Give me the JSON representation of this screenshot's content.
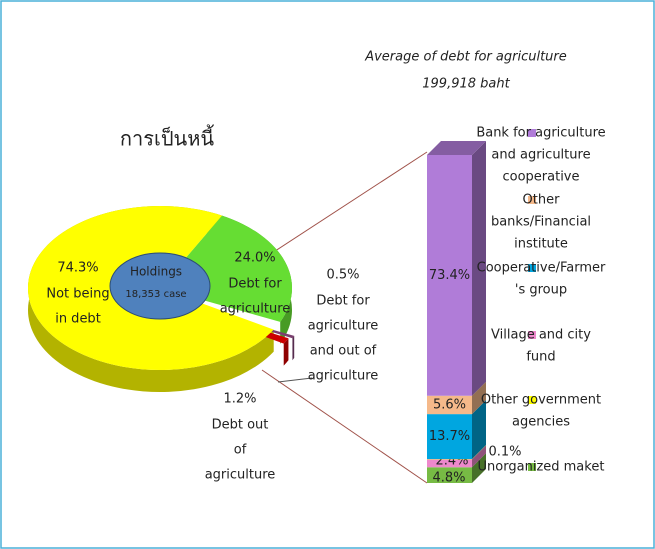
{
  "chart_data": [
    {
      "type": "pie",
      "title": "การเป็นหนี้",
      "center_label": [
        "Holdings",
        "18,353 case"
      ],
      "categories": [
        [
          "Debt for",
          "agriculture"
        ],
        [
          "Debt for",
          "agriculture",
          "and out of",
          "agriculture"
        ],
        [
          "Debt out",
          "of",
          "agriculture"
        ],
        [
          "Not being",
          "in debt"
        ]
      ],
      "values": [
        24.0,
        0.5,
        1.2,
        74.3
      ],
      "value_labels": [
        "24.0%",
        "0.5%",
        "1.2%",
        "74.3%"
      ],
      "colors": [
        "#66dd33",
        "#7b3f6f",
        "#cc0000",
        "#ffff00"
      ]
    },
    {
      "type": "stacked_bar",
      "title": [
        "Average of debt for agriculture",
        "199,918 baht"
      ],
      "ylim": [
        0,
        100
      ],
      "series": [
        {
          "name": [
            "Bank for agriculture",
            "and agriculture",
            "cooperative"
          ],
          "color": "#b07cd8",
          "values": [
            73.4
          ],
          "value_labels": [
            "73.4%"
          ]
        },
        {
          "name": [
            "Other",
            "banks/Financial",
            "institute"
          ],
          "color": "#f5b98a",
          "values": [
            5.6
          ],
          "value_labels": [
            "5.6%"
          ]
        },
        {
          "name": [
            "Cooperative/Farmer",
            "'s group"
          ],
          "color": "#00a6e0",
          "values": [
            13.7
          ],
          "value_labels": [
            "13.7%"
          ]
        },
        {
          "name": [
            "Village and city",
            "fund"
          ],
          "color": "#ee88cc",
          "values": [
            2.4
          ],
          "value_labels": [
            "2.4%"
          ]
        },
        {
          "name": [
            "Other government",
            "agencies"
          ],
          "color": "#ffff00",
          "values": [
            0.1
          ],
          "value_labels": [
            "0.1%"
          ]
        },
        {
          "name": [
            "Unorganized maket"
          ],
          "color": "#77bb44",
          "values": [
            4.8
          ],
          "value_labels": [
            "4.8%"
          ]
        }
      ]
    }
  ]
}
